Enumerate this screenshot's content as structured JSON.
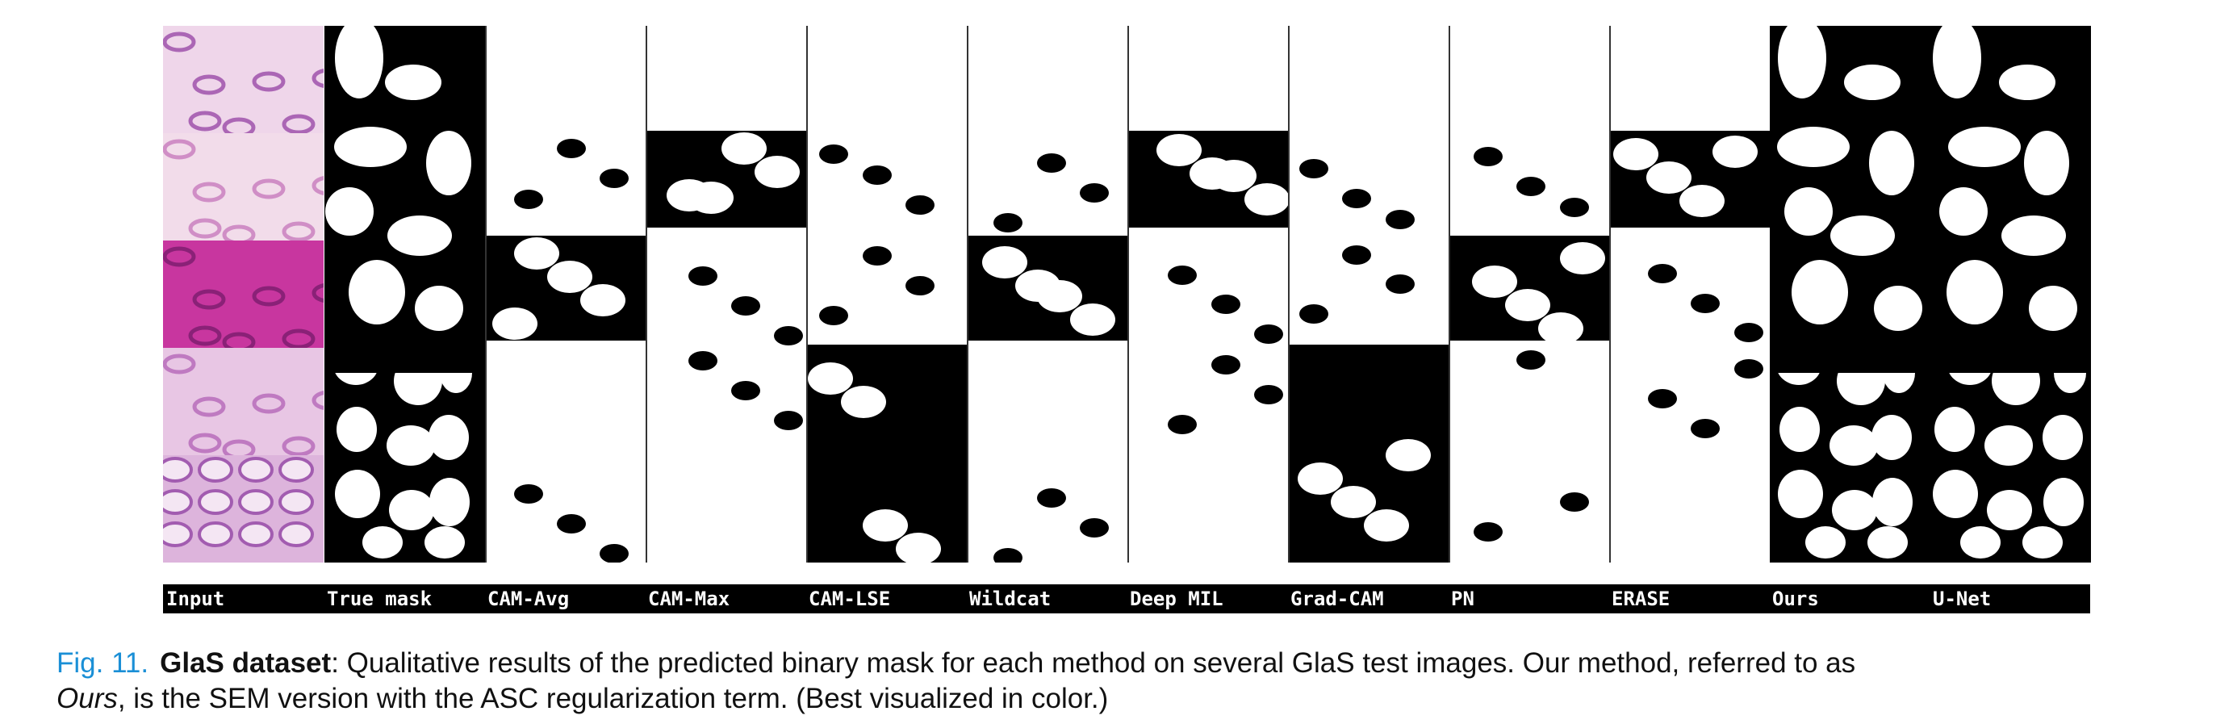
{
  "figure": {
    "methods": [
      "Input",
      "True mask",
      "CAM-Avg",
      "CAM-Max",
      "CAM-LSE",
      "Wildcat",
      "Deep MIL",
      "Grad-CAM",
      "PN",
      "ERASE",
      "Ours",
      "U-Net"
    ]
  },
  "caption": {
    "fig_number": "Fig. 11.",
    "dataset_bold": "GlaS dataset",
    "text_1": ": Qualitative results of the predicted binary mask for each method on several GlaS test images. Our method, referred to as",
    "ours_italic": "Ours",
    "text_2": ", is the SEM version with the ASC regularization term. (Best visualized in color.)"
  }
}
